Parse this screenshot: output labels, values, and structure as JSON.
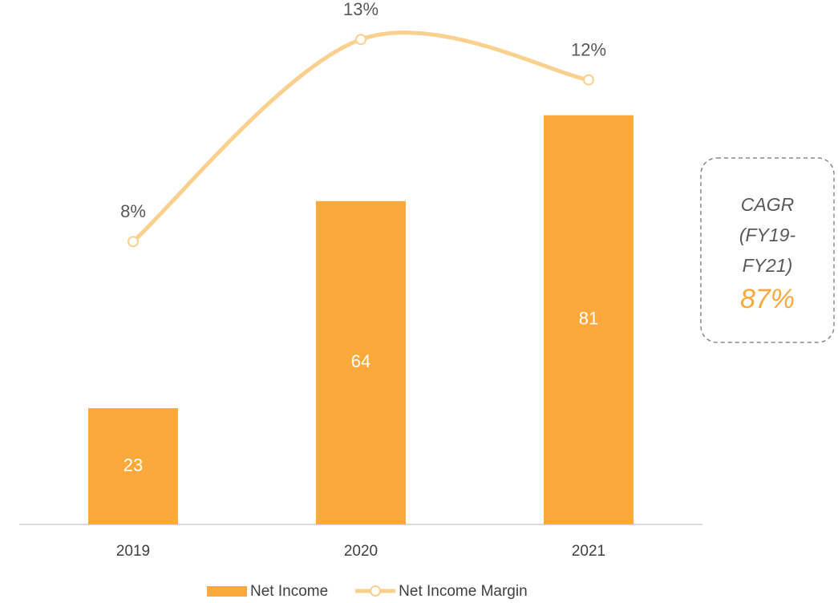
{
  "chart_data": {
    "type": "bar",
    "categories": [
      "2019",
      "2020",
      "2021"
    ],
    "series": [
      {
        "name": "Net Income",
        "type": "bar",
        "color": "#fba93a",
        "values": [
          23,
          64,
          81
        ]
      },
      {
        "name": "Net Income Margin",
        "type": "line",
        "axis": "y2",
        "color": "#fad08e",
        "values": [
          8,
          13,
          12
        ],
        "value_labels": [
          "8%",
          "13%",
          "12%"
        ]
      }
    ],
    "ylim": [
      0,
      100
    ],
    "y2lim": [
      1,
      13.5
    ],
    "legend": "bottom",
    "annotation": {
      "lines": [
        "CAGR",
        "(FY19-",
        "FY21)"
      ],
      "value": "87%",
      "value_color": "#fba93a"
    }
  }
}
